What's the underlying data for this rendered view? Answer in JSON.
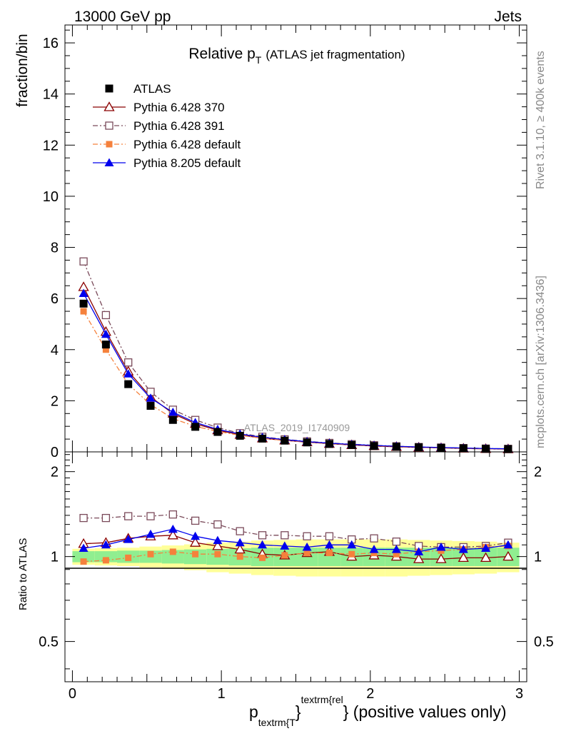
{
  "header": {
    "energy_label": "13000 GeV pp",
    "process_label": "Jets"
  },
  "side_labels": {
    "rivet": "Rivet 3.1.10, ≥ 400k events",
    "mcplots": "mcplots.cern.ch [arXiv:1306.3436]"
  },
  "chart_data": {
    "type": "line",
    "title_main": "Relative p",
    "title_sub": "T",
    "title_rest": "(ATLAS jet fragmentation)",
    "analysis_id": "ATLAS_2019_I1740909",
    "ylabel": "fraction/bin",
    "ratio_ylabel": "Ratio to ATLAS",
    "xlabel": {
      "p": "p",
      "sub": "textrm{T",
      "brace": "}",
      "sup": "textrm{rel",
      "rest": "} (positive values only)"
    },
    "xlim": [
      -0.05,
      3.05
    ],
    "ylim": [
      0,
      16.7
    ],
    "ratio_ylim": [
      0.36,
      2.35
    ],
    "x_ticks": [
      "0",
      "1",
      "2",
      "3"
    ],
    "y_ticks": [
      "0",
      "2",
      "4",
      "6",
      "8",
      "10",
      "12",
      "14",
      "16"
    ],
    "ratio_ticks": [
      "0.5",
      "1",
      "2"
    ],
    "x": [
      0.075,
      0.225,
      0.375,
      0.525,
      0.675,
      0.825,
      0.975,
      1.125,
      1.275,
      1.425,
      1.575,
      1.725,
      1.875,
      2.025,
      2.175,
      2.325,
      2.475,
      2.625,
      2.775,
      2.925
    ],
    "bin_edges": [
      0,
      0.15,
      0.3,
      0.45,
      0.6,
      0.75,
      0.9,
      1.05,
      1.2,
      1.35,
      1.5,
      1.65,
      1.8,
      1.95,
      2.1,
      2.25,
      2.4,
      2.55,
      2.7,
      2.85,
      3.0
    ],
    "band_green": [
      0.045,
      0.045,
      0.05,
      0.05,
      0.055,
      0.06,
      0.065,
      0.07,
      0.075,
      0.075,
      0.075,
      0.075,
      0.075,
      0.075,
      0.075,
      0.075,
      0.075,
      0.075,
      0.075,
      0.075
    ],
    "band_yellow": [
      0.065,
      0.07,
      0.075,
      0.085,
      0.095,
      0.105,
      0.12,
      0.13,
      0.14,
      0.145,
      0.15,
      0.15,
      0.15,
      0.15,
      0.15,
      0.145,
      0.14,
      0.135,
      0.13,
      0.12
    ],
    "series": [
      {
        "name": "ATLAS",
        "color": "#000000",
        "marker": "square",
        "line": "none",
        "values": [
          5.8,
          4.2,
          2.65,
          1.8,
          1.25,
          0.98,
          0.78,
          0.63,
          0.52,
          0.44,
          0.37,
          0.31,
          0.27,
          0.23,
          0.2,
          0.18,
          0.16,
          0.14,
          0.12,
          0.11
        ],
        "ratio": [
          1,
          1,
          1,
          1,
          1,
          1,
          1,
          1,
          1,
          1,
          1,
          1,
          1,
          1,
          1,
          1,
          1,
          1,
          1,
          1
        ]
      },
      {
        "name": "Pythia 6.428 370",
        "color": "#8b0000",
        "marker": "triangle-open",
        "line": "solid",
        "values": [
          6.45,
          4.7,
          3.15,
          2.15,
          1.5,
          1.1,
          0.85,
          0.67,
          0.53,
          0.45,
          0.38,
          0.32,
          0.27,
          0.23,
          0.2,
          0.175,
          0.155,
          0.135,
          0.12,
          0.11
        ],
        "ratio": [
          1.11,
          1.12,
          1.16,
          1.18,
          1.19,
          1.12,
          1.09,
          1.06,
          1.02,
          1.01,
          1.03,
          1.04,
          1.0,
          1.01,
          1.0,
          0.98,
          0.98,
          0.99,
          0.99,
          1.0
        ]
      },
      {
        "name": "Pythia 6.428 391",
        "color": "#7a4a5a",
        "marker": "square-open",
        "line": "dashdot",
        "values": [
          7.45,
          5.35,
          3.5,
          2.35,
          1.65,
          1.25,
          0.95,
          0.73,
          0.59,
          0.49,
          0.41,
          0.35,
          0.3,
          0.26,
          0.22,
          0.19,
          0.17,
          0.15,
          0.13,
          0.12
        ],
        "ratio": [
          1.37,
          1.37,
          1.39,
          1.39,
          1.41,
          1.34,
          1.3,
          1.23,
          1.19,
          1.19,
          1.18,
          1.18,
          1.15,
          1.16,
          1.13,
          1.09,
          1.08,
          1.08,
          1.09,
          1.12
        ]
      },
      {
        "name": "Pythia 6.428 default",
        "color": "#f5813c",
        "marker": "square-filled",
        "line": "dashdot",
        "values": [
          5.5,
          4.0,
          2.65,
          1.85,
          1.3,
          1.0,
          0.8,
          0.65,
          0.53,
          0.45,
          0.38,
          0.32,
          0.28,
          0.24,
          0.21,
          0.18,
          0.16,
          0.14,
          0.12,
          0.11
        ],
        "ratio": [
          0.96,
          0.97,
          0.99,
          1.02,
          1.04,
          1.02,
          1.02,
          1.0,
          0.99,
          1.01,
          1.03,
          1.03,
          1.02,
          1.03,
          1.02,
          1.04,
          1.05,
          1.06,
          1.08,
          1.09
        ]
      },
      {
        "name": "Pythia 8.205 default",
        "color": "#0000ee",
        "marker": "triangle-filled",
        "line": "solid",
        "values": [
          6.2,
          4.6,
          3.05,
          2.1,
          1.55,
          1.15,
          0.88,
          0.7,
          0.57,
          0.48,
          0.4,
          0.34,
          0.29,
          0.25,
          0.22,
          0.19,
          0.17,
          0.15,
          0.13,
          0.12
        ],
        "ratio": [
          1.07,
          1.1,
          1.15,
          1.2,
          1.25,
          1.18,
          1.14,
          1.12,
          1.1,
          1.09,
          1.08,
          1.1,
          1.1,
          1.06,
          1.06,
          1.04,
          1.08,
          1.06,
          1.07,
          1.1
        ]
      }
    ]
  }
}
